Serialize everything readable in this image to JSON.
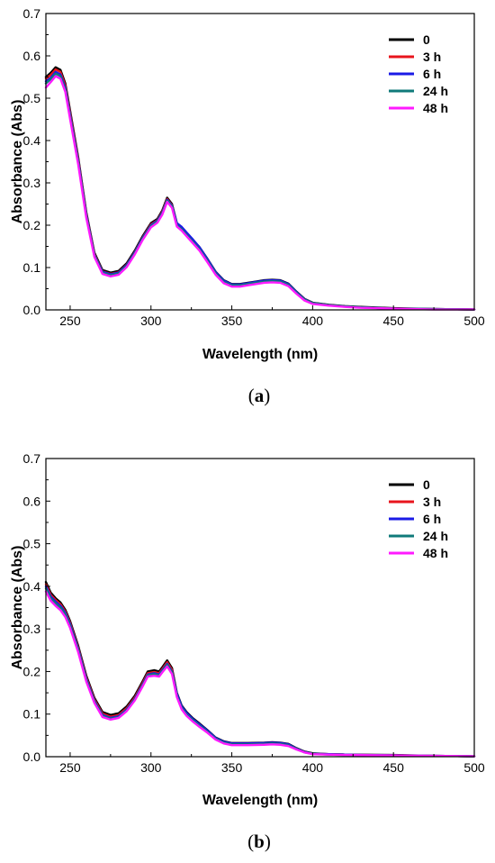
{
  "chart_data": [
    {
      "type": "line",
      "caption_letter": "a",
      "xlabel": "Wavelength (nm)",
      "ylabel": "Absorbance (Abs)",
      "xlim": [
        235,
        500
      ],
      "ylim": [
        0,
        0.7
      ],
      "xticks": [
        250,
        300,
        350,
        400,
        450,
        500
      ],
      "yticks": [
        0.0,
        0.1,
        0.2,
        0.3,
        0.4,
        0.5,
        0.6,
        0.7
      ],
      "legend_position": "top-right",
      "x": [
        235,
        238,
        241,
        244,
        247,
        250,
        255,
        260,
        265,
        270,
        275,
        280,
        285,
        290,
        295,
        300,
        304,
        307,
        310,
        313,
        316,
        319,
        322,
        326,
        330,
        335,
        340,
        345,
        350,
        355,
        360,
        365,
        370,
        375,
        380,
        385,
        390,
        395,
        400,
        410,
        420,
        430,
        450,
        475,
        500
      ],
      "series": [
        {
          "name": "0",
          "color": "#000000",
          "values": [
            0.55,
            0.56,
            0.573,
            0.567,
            0.535,
            0.47,
            0.36,
            0.23,
            0.135,
            0.094,
            0.088,
            0.092,
            0.11,
            0.14,
            0.175,
            0.205,
            0.215,
            0.235,
            0.265,
            0.25,
            0.205,
            0.195,
            0.182,
            0.165,
            0.148,
            0.12,
            0.09,
            0.07,
            0.061,
            0.061,
            0.064,
            0.067,
            0.07,
            0.071,
            0.07,
            0.062,
            0.043,
            0.026,
            0.017,
            0.012,
            0.009,
            0.007,
            0.004,
            0.002,
            0.001
          ]
        },
        {
          "name": "3 h",
          "color": "#e8141c",
          "values": [
            0.546,
            0.555,
            0.568,
            0.562,
            0.53,
            0.465,
            0.356,
            0.226,
            0.132,
            0.091,
            0.085,
            0.089,
            0.107,
            0.137,
            0.172,
            0.202,
            0.212,
            0.232,
            0.262,
            0.247,
            0.202,
            0.192,
            0.179,
            0.162,
            0.145,
            0.117,
            0.087,
            0.067,
            0.059,
            0.059,
            0.062,
            0.065,
            0.068,
            0.069,
            0.068,
            0.06,
            0.041,
            0.025,
            0.016,
            0.011,
            0.008,
            0.006,
            0.003,
            0.002,
            0.001
          ]
        },
        {
          "name": "6 h",
          "color": "#1a1ae6",
          "values": [
            0.54,
            0.548,
            0.562,
            0.556,
            0.525,
            0.46,
            0.352,
            0.224,
            0.13,
            0.09,
            0.084,
            0.088,
            0.106,
            0.136,
            0.171,
            0.2,
            0.211,
            0.23,
            0.26,
            0.246,
            0.205,
            0.196,
            0.183,
            0.166,
            0.148,
            0.119,
            0.089,
            0.069,
            0.06,
            0.06,
            0.063,
            0.066,
            0.069,
            0.07,
            0.069,
            0.061,
            0.042,
            0.025,
            0.016,
            0.011,
            0.008,
            0.006,
            0.003,
            0.002,
            0.001
          ]
        },
        {
          "name": "24 h",
          "color": "#0f7a7a",
          "values": [
            0.535,
            0.545,
            0.558,
            0.552,
            0.52,
            0.456,
            0.348,
            0.221,
            0.128,
            0.088,
            0.082,
            0.086,
            0.104,
            0.134,
            0.169,
            0.198,
            0.209,
            0.228,
            0.258,
            0.244,
            0.2,
            0.19,
            0.177,
            0.16,
            0.143,
            0.115,
            0.086,
            0.066,
            0.058,
            0.058,
            0.061,
            0.064,
            0.067,
            0.068,
            0.067,
            0.059,
            0.04,
            0.024,
            0.016,
            0.011,
            0.008,
            0.006,
            0.003,
            0.002,
            0.001
          ]
        },
        {
          "name": "48 h",
          "color": "#ff1aff",
          "values": [
            0.525,
            0.538,
            0.552,
            0.546,
            0.515,
            0.45,
            0.343,
            0.217,
            0.125,
            0.085,
            0.079,
            0.083,
            0.101,
            0.131,
            0.166,
            0.195,
            0.206,
            0.225,
            0.255,
            0.241,
            0.197,
            0.187,
            0.174,
            0.157,
            0.14,
            0.112,
            0.083,
            0.063,
            0.055,
            0.055,
            0.058,
            0.061,
            0.064,
            0.065,
            0.064,
            0.056,
            0.038,
            0.022,
            0.014,
            0.01,
            0.007,
            0.005,
            0.003,
            0.001,
            0.001
          ]
        }
      ]
    },
    {
      "type": "line",
      "caption_letter": "b",
      "xlabel": "Wavelength (nm)",
      "ylabel": "Absorbance (Abs)",
      "xlim": [
        235,
        500
      ],
      "ylim": [
        0,
        0.7
      ],
      "xticks": [
        250,
        300,
        350,
        400,
        450,
        500
      ],
      "yticks": [
        0.0,
        0.1,
        0.2,
        0.3,
        0.4,
        0.5,
        0.6,
        0.7
      ],
      "legend_position": "top-right",
      "x": [
        235,
        238,
        241,
        244,
        247,
        250,
        255,
        260,
        265,
        270,
        275,
        280,
        285,
        290,
        295,
        298,
        302,
        305,
        307,
        310,
        313,
        316,
        319,
        322,
        326,
        330,
        335,
        340,
        345,
        350,
        360,
        370,
        375,
        380,
        385,
        390,
        395,
        400,
        410,
        420,
        450,
        475,
        500
      ],
      "series": [
        {
          "name": "0",
          "color": "#000000",
          "values": [
            0.41,
            0.385,
            0.372,
            0.362,
            0.345,
            0.318,
            0.26,
            0.19,
            0.138,
            0.105,
            0.098,
            0.102,
            0.118,
            0.143,
            0.178,
            0.2,
            0.203,
            0.2,
            0.21,
            0.226,
            0.208,
            0.15,
            0.12,
            0.105,
            0.09,
            0.078,
            0.062,
            0.045,
            0.036,
            0.032,
            0.032,
            0.033,
            0.034,
            0.033,
            0.03,
            0.02,
            0.012,
            0.008,
            0.006,
            0.005,
            0.004,
            0.002,
            0.001
          ]
        },
        {
          "name": "3 h",
          "color": "#e8141c",
          "values": [
            0.405,
            0.38,
            0.368,
            0.358,
            0.341,
            0.314,
            0.256,
            0.186,
            0.134,
            0.101,
            0.094,
            0.098,
            0.114,
            0.139,
            0.174,
            0.196,
            0.199,
            0.196,
            0.206,
            0.222,
            0.204,
            0.146,
            0.116,
            0.101,
            0.087,
            0.075,
            0.06,
            0.043,
            0.034,
            0.03,
            0.03,
            0.031,
            0.032,
            0.031,
            0.028,
            0.019,
            0.011,
            0.007,
            0.006,
            0.005,
            0.003,
            0.002,
            0.001
          ]
        },
        {
          "name": "6 h",
          "color": "#1a1ae6",
          "values": [
            0.4,
            0.376,
            0.364,
            0.354,
            0.338,
            0.311,
            0.253,
            0.183,
            0.131,
            0.098,
            0.091,
            0.095,
            0.111,
            0.136,
            0.171,
            0.193,
            0.196,
            0.193,
            0.203,
            0.218,
            0.2,
            0.148,
            0.118,
            0.103,
            0.088,
            0.076,
            0.061,
            0.044,
            0.035,
            0.031,
            0.031,
            0.032,
            0.033,
            0.032,
            0.029,
            0.019,
            0.011,
            0.007,
            0.006,
            0.005,
            0.003,
            0.002,
            0.001
          ]
        },
        {
          "name": "24 h",
          "color": "#0f7a7a",
          "values": [
            0.395,
            0.372,
            0.36,
            0.35,
            0.334,
            0.307,
            0.25,
            0.18,
            0.129,
            0.096,
            0.089,
            0.093,
            0.109,
            0.134,
            0.169,
            0.191,
            0.194,
            0.191,
            0.201,
            0.216,
            0.198,
            0.143,
            0.114,
            0.099,
            0.085,
            0.073,
            0.058,
            0.042,
            0.033,
            0.029,
            0.029,
            0.03,
            0.031,
            0.03,
            0.027,
            0.018,
            0.01,
            0.007,
            0.005,
            0.004,
            0.003,
            0.002,
            0.001
          ]
        },
        {
          "name": "48 h",
          "color": "#ff1aff",
          "values": [
            0.388,
            0.366,
            0.354,
            0.344,
            0.328,
            0.302,
            0.245,
            0.176,
            0.126,
            0.093,
            0.087,
            0.091,
            0.107,
            0.132,
            0.166,
            0.188,
            0.19,
            0.188,
            0.198,
            0.212,
            0.194,
            0.14,
            0.111,
            0.096,
            0.082,
            0.07,
            0.056,
            0.04,
            0.031,
            0.027,
            0.027,
            0.028,
            0.029,
            0.028,
            0.025,
            0.017,
            0.01,
            0.006,
            0.005,
            0.004,
            0.003,
            0.002,
            0.001
          ]
        }
      ]
    }
  ]
}
